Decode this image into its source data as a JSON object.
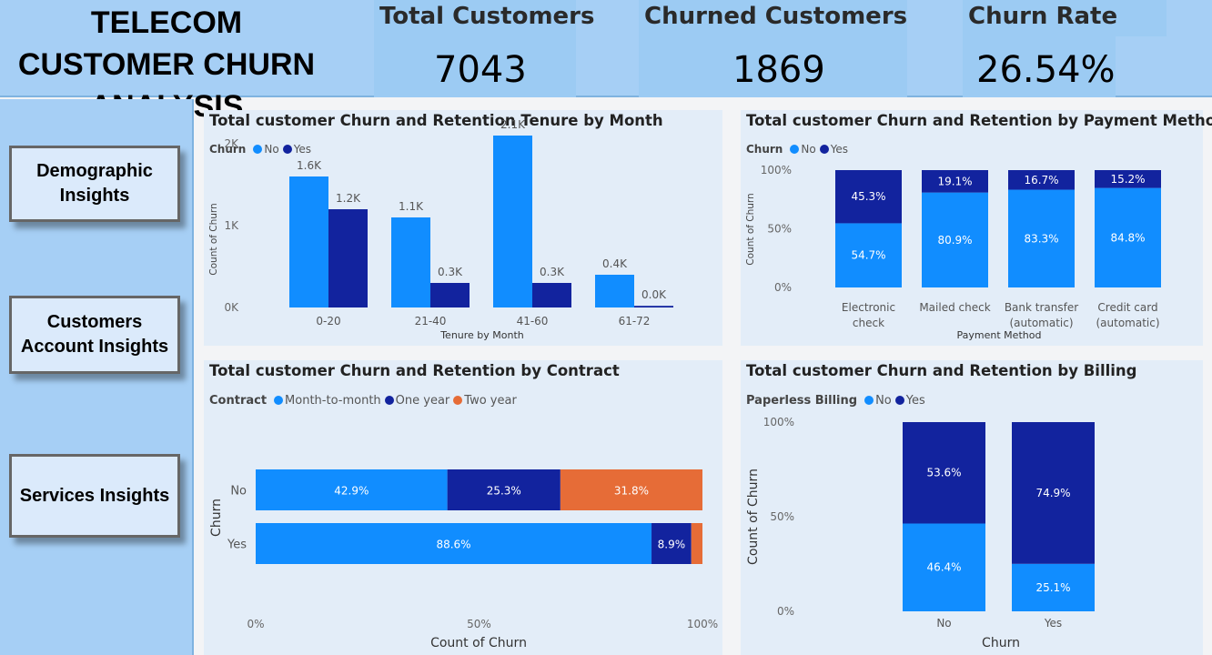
{
  "header": {
    "title": "TELECOM CUSTOMER CHURN  ANALYSIS",
    "kpis": [
      {
        "label": "Total Customers",
        "value": "7043"
      },
      {
        "label": "Churned Customers",
        "value": "1869"
      },
      {
        "label": "Churn Rate",
        "value": "26.54%"
      }
    ]
  },
  "sidebar": {
    "items": [
      {
        "label": "Demographic Insights"
      },
      {
        "label": "Customers Account Insights"
      },
      {
        "label": "Services Insights"
      }
    ]
  },
  "colors": {
    "no": "#118dff",
    "yes": "#12239e",
    "two_year": "#e66c37"
  },
  "chart_data": [
    {
      "type": "bar",
      "title": "Total customer Churn and Retention Tenure by Month",
      "legend_title": "Churn",
      "xlabel": "Tenure by Month",
      "ylabel": "Count of Churn",
      "ylim": [
        0,
        2200
      ],
      "yticks": [
        "0K",
        "1K",
        "2K"
      ],
      "categories": [
        "0-20",
        "21-40",
        "41-60",
        "61-72"
      ],
      "series": [
        {
          "name": "No",
          "values": [
            1600,
            1100,
            2100,
            400
          ],
          "labels": [
            "1.6K",
            "1.1K",
            "2.1K",
            "0.4K"
          ]
        },
        {
          "name": "Yes",
          "values": [
            1200,
            300,
            300,
            20
          ],
          "labels": [
            "1.2K",
            "0.3K",
            "0.3K",
            "0.0K"
          ]
        }
      ]
    },
    {
      "type": "bar",
      "stacked": "100%",
      "title": "Total customer Churn and Retention by Payment Method",
      "legend_title": "Churn",
      "xlabel": "Payment Method",
      "ylabel": "Count of Churn",
      "yticks": [
        "0%",
        "50%",
        "100%"
      ],
      "categories": [
        "Electronic check",
        "Mailed check",
        "Bank transfer (automatic)",
        "Credit card (automatic)"
      ],
      "category_lines": [
        [
          "Electronic",
          "check"
        ],
        [
          "Mailed check"
        ],
        [
          "Bank transfer",
          "(automatic)"
        ],
        [
          "Credit card",
          "(automatic)"
        ]
      ],
      "series": [
        {
          "name": "No",
          "values": [
            54.7,
            80.9,
            83.3,
            84.8
          ],
          "labels": [
            "54.7%",
            "80.9%",
            "83.3%",
            "84.8%"
          ]
        },
        {
          "name": "Yes",
          "values": [
            45.3,
            19.1,
            16.7,
            15.2
          ],
          "labels": [
            "45.3%",
            "19.1%",
            "16.7%",
            "15.2%"
          ]
        }
      ]
    },
    {
      "type": "bar",
      "orientation": "horizontal",
      "stacked": "100%",
      "title": "Total customer Churn and Retention by Contract",
      "legend_title": "Contract",
      "xlabel": "Count of Churn",
      "ylabel": "Churn",
      "xticks": [
        "0%",
        "50%",
        "100%"
      ],
      "categories": [
        "No",
        "Yes"
      ],
      "series": [
        {
          "name": "Month-to-month",
          "values": [
            42.9,
            88.6
          ],
          "labels": [
            "42.9%",
            "88.6%"
          ]
        },
        {
          "name": "One year",
          "values": [
            25.3,
            8.9
          ],
          "labels": [
            "25.3%",
            "8.9%"
          ]
        },
        {
          "name": "Two year",
          "values": [
            31.8,
            2.5
          ],
          "labels": [
            "31.8%",
            ""
          ]
        }
      ]
    },
    {
      "type": "bar",
      "stacked": "100%",
      "title": "Total customer Churn and Retention by Billing",
      "legend_title": "Paperless Billing",
      "xlabel": "Churn",
      "ylabel": "Count of Churn",
      "yticks": [
        "0%",
        "50%",
        "100%"
      ],
      "categories": [
        "No",
        "Yes"
      ],
      "series": [
        {
          "name": "No",
          "values": [
            46.4,
            25.1
          ],
          "labels": [
            "46.4%",
            "25.1%"
          ]
        },
        {
          "name": "Yes",
          "values": [
            53.6,
            74.9
          ],
          "labels": [
            "53.6%",
            "74.9%"
          ]
        }
      ]
    }
  ]
}
